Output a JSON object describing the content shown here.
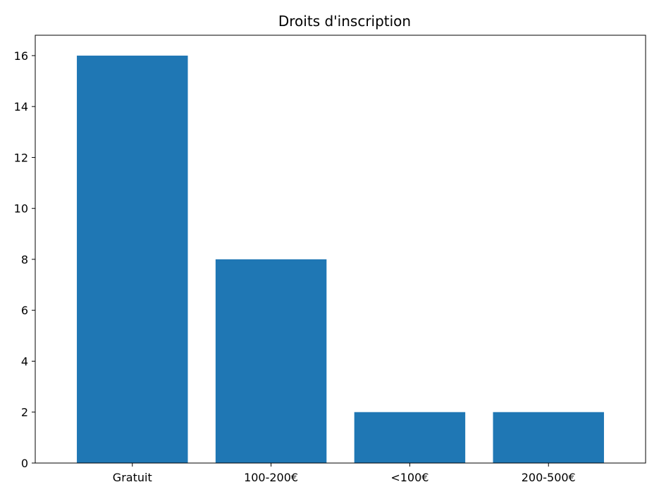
{
  "chart_data": {
    "type": "bar",
    "title": "Droits d'inscription",
    "xlabel": "",
    "ylabel": "",
    "categories": [
      "Gratuit",
      "100-200€",
      "<100€",
      "200-500€"
    ],
    "values": [
      16,
      8,
      2,
      2
    ],
    "ylim": [
      0,
      16.8
    ],
    "yticks": [
      "0",
      "2",
      "4",
      "6",
      "8",
      "10",
      "12",
      "14",
      "16"
    ],
    "grid": false,
    "bar_color": "#1f77b4"
  }
}
